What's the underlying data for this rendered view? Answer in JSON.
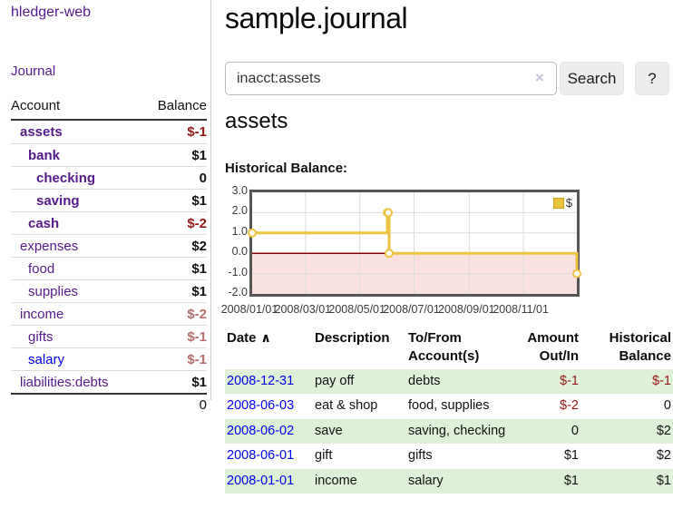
{
  "colors": {
    "link_purple": "#551a8b",
    "link_blue": "#0000ee",
    "negative_strong": "#991717",
    "negative_soft": "#b76e6e",
    "stripe_green": "#dff0d8",
    "series_gold": "#edc240",
    "negative_region_pink": "#fbe0e0",
    "zero_line_dark_red": "#8b0000"
  },
  "sidebar": {
    "app_title": "hledger-web",
    "journal_link": "Journal",
    "table": {
      "account_header": "Account",
      "balance_header": "Balance",
      "rows": [
        {
          "name": "assets",
          "balance": "$-1",
          "indent": 0,
          "bold": true,
          "neg": "strong"
        },
        {
          "name": "bank",
          "balance": "$1",
          "indent": 1,
          "bold": true,
          "neg": ""
        },
        {
          "name": "checking",
          "balance": "0",
          "indent": 2,
          "bold": true,
          "neg": ""
        },
        {
          "name": "saving",
          "balance": "$1",
          "indent": 2,
          "bold": true,
          "neg": ""
        },
        {
          "name": "cash",
          "balance": "$-2",
          "indent": 1,
          "bold": true,
          "neg": "strong"
        },
        {
          "name": "expenses",
          "balance": "$2",
          "indent": 0,
          "bold": false,
          "neg": ""
        },
        {
          "name": "food",
          "balance": "$1",
          "indent": 1,
          "bold": false,
          "neg": ""
        },
        {
          "name": "supplies",
          "balance": "$1",
          "indent": 1,
          "bold": false,
          "neg": ""
        },
        {
          "name": "income",
          "balance": "$-2",
          "indent": 0,
          "bold": false,
          "neg": "soft"
        },
        {
          "name": "gifts",
          "balance": "$-1",
          "indent": 1,
          "bold": false,
          "neg": "soft"
        },
        {
          "name": "salary",
          "balance": "$-1",
          "indent": 1,
          "bold": false,
          "neg": "soft",
          "link": "blue"
        },
        {
          "name": "liabilities:debts",
          "balance": "$1",
          "indent": 0,
          "bold": false,
          "neg": ""
        }
      ],
      "total": "0"
    }
  },
  "main": {
    "title": "sample.journal",
    "search": {
      "value": "inacct:assets",
      "clear_icon": "×",
      "search_button": "Search",
      "help_button": "?"
    },
    "account_heading": "assets",
    "chart_label": "Historical Balance:",
    "register": {
      "headers": {
        "date": "Date",
        "sort_icon": "∧",
        "description": "Description",
        "account": "To/From Account(s)",
        "amount": "Amount Out/In",
        "balance": "Historical Balance"
      },
      "rows": [
        {
          "date": "2008-12-31",
          "description": "pay off",
          "account": "debts",
          "amount": "$-1",
          "balance": "$-1",
          "amount_neg": true,
          "balance_neg": true
        },
        {
          "date": "2008-06-03",
          "description": "eat & shop",
          "account": "food, supplies",
          "amount": "$-2",
          "balance": "0",
          "amount_neg": true,
          "balance_neg": false
        },
        {
          "date": "2008-06-02",
          "description": "save",
          "account": "saving, checking",
          "amount": "0",
          "balance": "$2",
          "amount_neg": false,
          "balance_neg": false
        },
        {
          "date": "2008-06-01",
          "description": "gift",
          "account": "gifts",
          "amount": "$1",
          "balance": "$2",
          "amount_neg": false,
          "balance_neg": false
        },
        {
          "date": "2008-01-01",
          "description": "income",
          "account": "salary",
          "amount": "$1",
          "balance": "$1",
          "amount_neg": false,
          "balance_neg": false
        }
      ]
    }
  },
  "chart_data": {
    "type": "line",
    "step": true,
    "title": "Historical Balance:",
    "series": [
      {
        "name": "$",
        "color": "#edc240",
        "points": [
          [
            "2008-01-01",
            1
          ],
          [
            "2008-06-01",
            2
          ],
          [
            "2008-06-02",
            2
          ],
          [
            "2008-06-03",
            0
          ],
          [
            "2008-12-31",
            -1
          ]
        ]
      }
    ],
    "x_range": [
      "2008-01-01",
      "2008-12-31"
    ],
    "ylim": [
      -2,
      3
    ],
    "yticks": [
      3.0,
      2.0,
      1.0,
      0.0,
      -1.0,
      -2.0
    ],
    "xticks": [
      "2008/01/01",
      "2008/03/01",
      "2008/05/01",
      "2008/07/01",
      "2008/09/01",
      "2008/11/01"
    ],
    "grid": true,
    "legend_position": "top-right",
    "negative_region_fill": "#fbe0e0",
    "zero_line_color": "#8b0000",
    "grid_color": "#dcdcdc"
  }
}
